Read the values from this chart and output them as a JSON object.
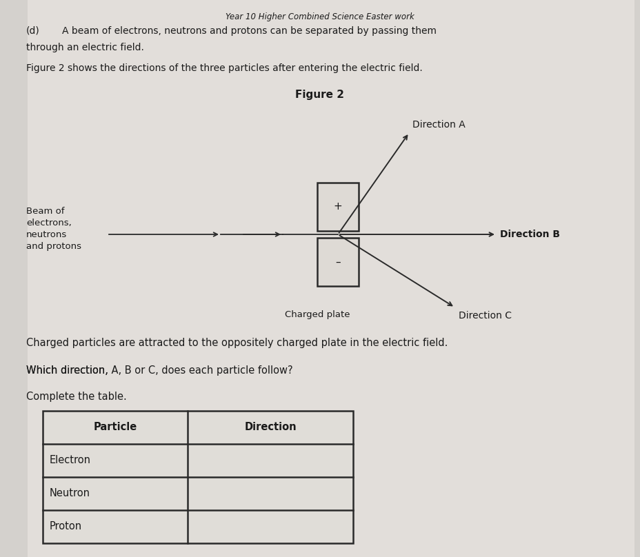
{
  "bg_color": "#cccac6",
  "center_bg": "#e8e6e2",
  "title": "Year 10 Higher Combined Science Easter work",
  "part_label": "(d)",
  "part_text1": "A beam of electrons, neutrons and protons can be separated by passing them",
  "part_text2": "through an electric field.",
  "fig_caption1": "Figure 2 shows the directions of the three particles after entering the electric field.",
  "fig_label": "Figure 2",
  "beam_label": "Beam of\nelectrons,\nneutrons\nand protons",
  "charged_plate_label": "Charged plate",
  "direction_a": "Direction A",
  "direction_b": "Direction B",
  "direction_c": "Direction C",
  "plus_label": "+",
  "minus_label": "–",
  "info_text1": "Charged particles are attracted to the oppositely charged plate in the electric field.",
  "question_text": "Which direction, A, B or C, does each particle follow?",
  "question_bold": [
    "A",
    "B",
    "C"
  ],
  "complete_text": "Complete the table.",
  "table_headers": [
    "Particle",
    "Direction"
  ],
  "table_rows": [
    "Electron",
    "Neutron",
    "Proton"
  ],
  "text_color": "#1a1a1a",
  "line_color": "#2a2a2a",
  "box_color": "#2a2a2a",
  "fig_bg": "#dedad5"
}
